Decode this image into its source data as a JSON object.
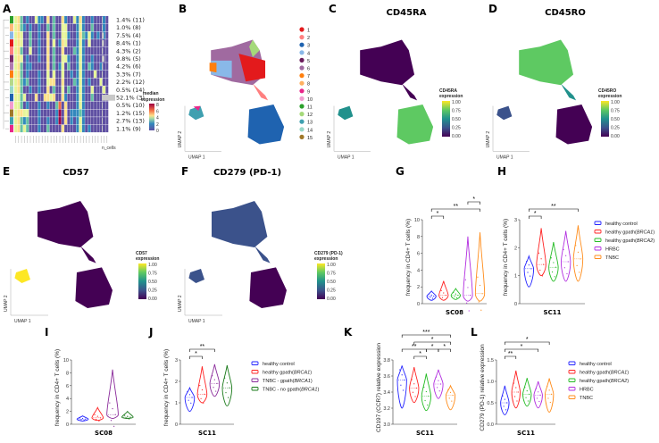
{
  "panel_labels": {
    "A": "A",
    "B": "B",
    "C": "C",
    "D": "D",
    "E": "E",
    "F": "F",
    "G": "G",
    "H": "H",
    "I": "I",
    "J": "J",
    "K": "K",
    "L": "L"
  },
  "colors": {
    "healthy_control": "#2222ff",
    "healthy_gpath_BRCA1": "#ff2222",
    "healthy_gpath_BRCA2": "#22bb22",
    "HRBC": "#b22ee0",
    "TNBC": "#ff8c1a",
    "TNBC_gpath": "#8a2a9a",
    "TNBC_no_gpath": "#1a7a1a"
  },
  "chart_data": [
    {
      "id": "A",
      "type": "heatmap",
      "row_labels": [
        "1.4% (11)",
        "1.0% (8)",
        "7.5% (4)",
        "8.4% (1)",
        "4.3% (2)",
        "9.8% (5)",
        "4.2% (6)",
        "3.3% (7)",
        "2.2% (12)",
        "0.5% (14)",
        "52.1% (3)",
        "0.5% (10)",
        "1.2% (15)",
        "2.7% (13)",
        "1.1% (9)"
      ],
      "row_colors": [
        "#2ca02c",
        "#ffbb78",
        "#89b8e8",
        "#e31a1c",
        "#ff8080",
        "#7b2a6b",
        "#b07ab0",
        "#ff7f0e",
        "#b5d98a",
        "#98d8c8",
        "#1f63b0",
        "#f29cd0",
        "#a07828",
        "#3fa0b0",
        "#e8278a"
      ],
      "legend_title_1": "median",
      "legend_title_2": "expression",
      "legend_ticks": [
        "8",
        "6",
        "4",
        "2",
        "0"
      ],
      "n_cells_label": "n_cells",
      "matrix": [
        "34201003110402004100314100100010",
        "34210100100202003300013100200010",
        "34300200100402003310014213101010",
        "34300200100403014300013103000000",
        "34200300100402004000213100000000",
        "34301000100402003310013100100000",
        "34201100000402013020013102100100",
        "34201000100303003001013100030000",
        "34212000100344004000213101000300",
        "34200100100402003020013100300030",
        "33230004004434004100013100200000",
        "33201000100100260400013100000000",
        "34433000100000180401112100000000",
        "34212000100100180401013100000000",
        "34232000100200004000013101000000"
      ],
      "n_cells": [
        1.4,
        1.0,
        7.5,
        8.4,
        4.3,
        9.8,
        4.2,
        3.3,
        2.2,
        0.5,
        52.1,
        0.5,
        1.2,
        2.7,
        1.1
      ]
    },
    {
      "id": "B",
      "type": "scatter",
      "title": "",
      "xlabel": "UMAP 1",
      "ylabel": "UMAP 2",
      "legend": [
        "1",
        "2",
        "3",
        "4",
        "5",
        "6",
        "7",
        "8",
        "9",
        "10",
        "11",
        "12",
        "13",
        "14",
        "15"
      ],
      "legend_colors": [
        "#e31a1c",
        "#ff8080",
        "#1f63b0",
        "#89b8e8",
        "#6a1b5a",
        "#a06aa0",
        "#ff7f0e",
        "#ffb060",
        "#e8278a",
        "#f29cd0",
        "#2ca02c",
        "#a5d97a",
        "#3fa0b0",
        "#98d8c8",
        "#a07828"
      ]
    },
    {
      "id": "C",
      "type": "scatter",
      "title": "CD45RA",
      "xlabel": "UMAP 1",
      "ylabel": "UMAP 2",
      "colorbar_title_1": "CD45RA",
      "colorbar_title_2": "expression",
      "colorbar_ticks": [
        "1.00",
        "0.75",
        "0.50",
        "0.25",
        "0.00"
      ],
      "high_region": "lower"
    },
    {
      "id": "D",
      "type": "scatter",
      "title": "CD45RO",
      "xlabel": "UMAP 1",
      "ylabel": "UMAP 2",
      "colorbar_title_1": "CD45RO",
      "colorbar_title_2": "expression",
      "colorbar_ticks": [
        "1.00",
        "0.75",
        "0.50",
        "0.25",
        "0.00"
      ],
      "high_region": "upper"
    },
    {
      "id": "E",
      "type": "scatter",
      "title": "CD57",
      "xlabel": "UMAP 1",
      "ylabel": "UMAP 2",
      "colorbar_title_1": "CD57",
      "colorbar_title_2": "expression",
      "colorbar_ticks": [
        "1.00",
        "0.75",
        "0.50",
        "0.25",
        "0.00"
      ],
      "high_region": "small"
    },
    {
      "id": "F",
      "type": "scatter",
      "title": "CD279 (PD-1)",
      "xlabel": "UMAP 1",
      "ylabel": "UMAP 2",
      "colorbar_title_1": "CD279 (PD-1)",
      "colorbar_title_2": "expression",
      "colorbar_ticks": [
        "1.00",
        "0.75",
        "0.50",
        "0.25",
        "0.00"
      ],
      "high_region": "upper-mid"
    },
    {
      "id": "G",
      "type": "violin",
      "xlabel": "SC08",
      "ylabel": "frequency in CD4+ T cells (%)",
      "ylim": [
        0,
        10
      ],
      "yticks": [
        "0",
        "2",
        "4",
        "6",
        "8",
        "10"
      ],
      "ytick_values": [
        0,
        2,
        4,
        6,
        8,
        10
      ],
      "series": [
        {
          "name": "healthy control",
          "key": "healthy_control",
          "min": 0.4,
          "median": 0.9,
          "max": 1.5
        },
        {
          "name": "healthy gpath(BRCA1)",
          "key": "healthy_gpath_BRCA1",
          "min": 0.4,
          "median": 1.0,
          "max": 2.7
        },
        {
          "name": "healthy gpath(BRCA2)",
          "key": "healthy_gpath_BRCA2",
          "min": 0.5,
          "median": 1.0,
          "max": 1.8
        },
        {
          "name": "HRBC",
          "key": "HRBC",
          "min": 0.3,
          "median": 1.0,
          "max": 8.0
        },
        {
          "name": "TNBC",
          "key": "TNBC",
          "min": 0.3,
          "median": 1.2,
          "max": 8.5
        }
      ],
      "significance": [
        {
          "a": 0,
          "b": 1,
          "label": "*"
        },
        {
          "a": 0,
          "b": 4,
          "label": "**"
        },
        {
          "a": 3,
          "b": 4,
          "label": "*"
        }
      ]
    },
    {
      "id": "H",
      "type": "violin",
      "xlabel": "SC11",
      "ylabel": "frequency in CD4+ T cells (%)",
      "ylim": [
        0,
        3
      ],
      "yticks": [
        "0",
        "1",
        "2",
        "3"
      ],
      "ytick_values": [
        0,
        1,
        2,
        3
      ],
      "series": [
        {
          "name": "healthy control",
          "key": "healthy_control",
          "min": 0.6,
          "median": 1.25,
          "max": 1.7
        },
        {
          "name": "healthy gpath(BRCA1)",
          "key": "healthy_gpath_BRCA1",
          "min": 1.0,
          "median": 1.4,
          "max": 2.7
        },
        {
          "name": "healthy gpath(BRCA2)",
          "key": "healthy_gpath_BRCA2",
          "min": 0.8,
          "median": 1.3,
          "max": 2.2
        },
        {
          "name": "HRBC",
          "key": "HRBC",
          "min": 0.8,
          "median": 1.5,
          "max": 2.6
        },
        {
          "name": "TNBC",
          "key": "TNBC",
          "min": 0.8,
          "median": 1.6,
          "max": 2.8
        }
      ],
      "significance": [
        {
          "a": 0,
          "b": 1,
          "label": "*"
        },
        {
          "a": 0,
          "b": 4,
          "label": "**"
        }
      ],
      "legend": [
        {
          "prefix": "healthy control",
          "italic": "",
          "suffix": ""
        },
        {
          "prefix": "healthy gpath(",
          "italic": "BRCA1",
          "suffix": ")"
        },
        {
          "prefix": "healthy gpath(",
          "italic": "BRCA2",
          "suffix": ")"
        },
        {
          "prefix": "HRBC",
          "italic": "",
          "suffix": ""
        },
        {
          "prefix": "TNBC",
          "italic": "",
          "suffix": ""
        }
      ]
    },
    {
      "id": "I",
      "type": "violin",
      "xlabel": "SC08",
      "ylabel": "frequency in CD4+ T cells (%)",
      "ylim": [
        0,
        10
      ],
      "yticks": [
        "0",
        "2",
        "4",
        "6",
        "8",
        "10"
      ],
      "ytick_values": [
        0,
        2,
        4,
        6,
        8,
        10
      ],
      "series": [
        {
          "name": "healthy control",
          "key": "healthy_control",
          "min": 0.5,
          "median": 0.8,
          "max": 1.3
        },
        {
          "name": "healthy gpath(BRCA1)",
          "key": "healthy_gpath_BRCA1",
          "min": 0.6,
          "median": 1.0,
          "max": 2.6
        },
        {
          "name": "TNBC - gpath(BRCA1)",
          "key": "TNBC_gpath",
          "min": 0.9,
          "median": 1.5,
          "max": 8.5
        },
        {
          "name": "TNBC - no gpath(BRCA1)",
          "key": "TNBC_no_gpath",
          "min": 0.9,
          "median": 1.1,
          "max": 2.0
        }
      ],
      "significance": []
    },
    {
      "id": "J",
      "type": "violin",
      "xlabel": "SC11",
      "ylabel": "frequency in CD4+ T cells (%)",
      "ylim": [
        0,
        3
      ],
      "yticks": [
        "0",
        "1",
        "2",
        "3"
      ],
      "ytick_values": [
        0,
        1,
        2,
        3
      ],
      "series": [
        {
          "name": "healthy control",
          "key": "healthy_control",
          "min": 0.6,
          "median": 1.25,
          "max": 1.7
        },
        {
          "name": "healthy gpath(BRCA1)",
          "key": "healthy_gpath_BRCA1",
          "min": 1.0,
          "median": 1.4,
          "max": 2.7
        },
        {
          "name": "TNBC - gpath(BRCA1)",
          "key": "TNBC_gpath",
          "min": 1.3,
          "median": 1.9,
          "max": 2.8
        },
        {
          "name": "TNBC - no gpath(BRCA1)",
          "key": "TNBC_no_gpath",
          "min": 0.85,
          "median": 1.7,
          "max": 2.75
        }
      ],
      "significance": [
        {
          "a": 0,
          "b": 1,
          "label": "*"
        },
        {
          "a": 0,
          "b": 2,
          "label": "**"
        }
      ],
      "legend": [
        {
          "prefix": "healthy control",
          "italic": "",
          "suffix": ""
        },
        {
          "prefix": "healthy gpath(",
          "italic": "BRCA1",
          "suffix": ")"
        },
        {
          "prefix": "TNBC - gpath(",
          "italic": "BRCA1",
          "suffix": ")"
        },
        {
          "prefix": "TNBC - no gpath(",
          "italic": "BRCA1",
          "suffix": ")"
        }
      ]
    },
    {
      "id": "K",
      "type": "violin",
      "xlabel": "SC11",
      "ylabel": "CD197 (CCR7) relative expression",
      "ylim": [
        3.0,
        3.8
      ],
      "yticks": [
        "3.0",
        "3.2",
        "3.4",
        "3.6",
        "3.8"
      ],
      "ytick_values": [
        3.0,
        3.2,
        3.4,
        3.6,
        3.8
      ],
      "series": [
        {
          "name": "healthy control",
          "key": "healthy_control",
          "min": 3.2,
          "median": 3.55,
          "max": 3.73
        },
        {
          "name": "healthy gpath(BRCA1)",
          "key": "healthy_gpath_BRCA1",
          "min": 3.27,
          "median": 3.45,
          "max": 3.71
        },
        {
          "name": "healthy gpath(BRCA2)",
          "key": "healthy_gpath_BRCA2",
          "min": 3.17,
          "median": 3.35,
          "max": 3.63
        },
        {
          "name": "HRBC",
          "key": "HRBC",
          "min": 3.32,
          "median": 3.5,
          "max": 3.68
        },
        {
          "name": "TNBC",
          "key": "TNBC",
          "min": 3.18,
          "median": 3.36,
          "max": 3.48
        }
      ],
      "significance": [
        {
          "a": 1,
          "b": 2,
          "label": "*",
          "level": 0
        },
        {
          "a": 0,
          "b": 2,
          "label": "**",
          "level": 1
        },
        {
          "a": 2,
          "b": 3,
          "label": "*",
          "level": 1
        },
        {
          "a": 3,
          "b": 4,
          "label": "*",
          "level": 1
        },
        {
          "a": 1,
          "b": 4,
          "label": "*",
          "level": 2
        },
        {
          "a": 0,
          "b": 4,
          "label": "***",
          "level": 3
        }
      ]
    },
    {
      "id": "L",
      "type": "violin",
      "xlabel": "SC11",
      "ylabel": "CD279 (PD-1) relative expression",
      "ylim": [
        0,
        1.5
      ],
      "yticks": [
        "0.0",
        "0.5",
        "1.0",
        "1.5"
      ],
      "ytick_values": [
        0,
        0.5,
        1.0,
        1.5
      ],
      "series": [
        {
          "name": "healthy control",
          "key": "healthy_control",
          "min": 0.22,
          "median": 0.5,
          "max": 0.9
        },
        {
          "name": "healthy gpath(BRCA1)",
          "key": "healthy_gpath_BRCA1",
          "min": 0.38,
          "median": 0.75,
          "max": 1.25
        },
        {
          "name": "healthy gpath(BRCA2)",
          "key": "healthy_gpath_BRCA2",
          "min": 0.42,
          "median": 0.7,
          "max": 1.08
        },
        {
          "name": "HRBC",
          "key": "HRBC",
          "min": 0.38,
          "median": 0.68,
          "max": 1.0
        },
        {
          "name": "TNBC",
          "key": "TNBC",
          "min": 0.28,
          "median": 0.7,
          "max": 1.07
        }
      ],
      "significance": [
        {
          "a": 0,
          "b": 1,
          "label": "**"
        },
        {
          "a": 0,
          "b": 3,
          "label": "*"
        },
        {
          "a": 0,
          "b": 4,
          "label": "*"
        }
      ],
      "legend": [
        {
          "prefix": "healthy control",
          "italic": "",
          "suffix": ""
        },
        {
          "prefix": "healthy gpath(",
          "italic": "BRCA1",
          "suffix": ")"
        },
        {
          "prefix": "healthy gpath(",
          "italic": "BRCA2",
          "suffix": ")"
        },
        {
          "prefix": "HRBC",
          "italic": "",
          "suffix": ""
        },
        {
          "prefix": "TNBC",
          "italic": "",
          "suffix": ""
        }
      ]
    }
  ]
}
